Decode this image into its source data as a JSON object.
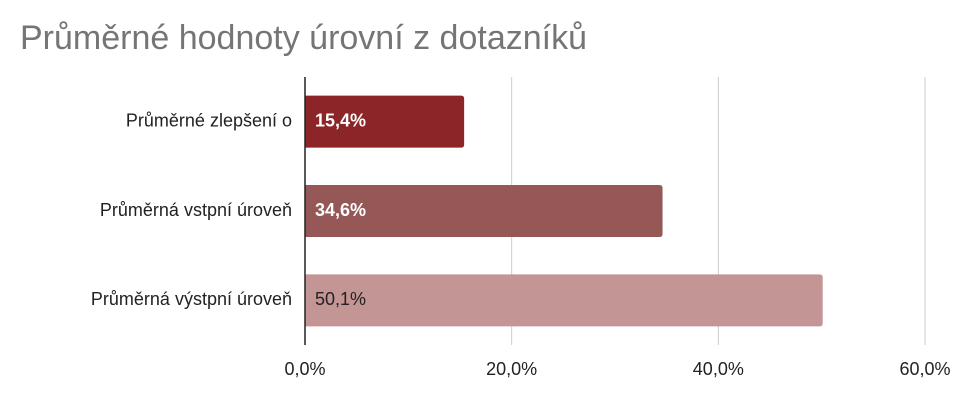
{
  "chart_data": {
    "type": "bar",
    "orientation": "horizontal",
    "title": "Průměrné hodnoty úrovní z dotazníků",
    "categories": [
      "Průměrné zlepšení o",
      "Průměrná vstpní úroveň",
      "Průměrná výstpní úroveň"
    ],
    "values": [
      15.4,
      34.6,
      50.1
    ],
    "value_labels": [
      "15,4%",
      "34,6%",
      "50,1%"
    ],
    "colors": [
      "#8b2527",
      "#965757",
      "#c49595"
    ],
    "xlim": [
      0,
      60
    ],
    "xticks": [
      {
        "value": 0,
        "label": "0,0%"
      },
      {
        "value": 20,
        "label": "20,0%"
      },
      {
        "value": 40,
        "label": "40,0%"
      },
      {
        "value": 60,
        "label": "60,0%"
      }
    ],
    "grid": true
  }
}
